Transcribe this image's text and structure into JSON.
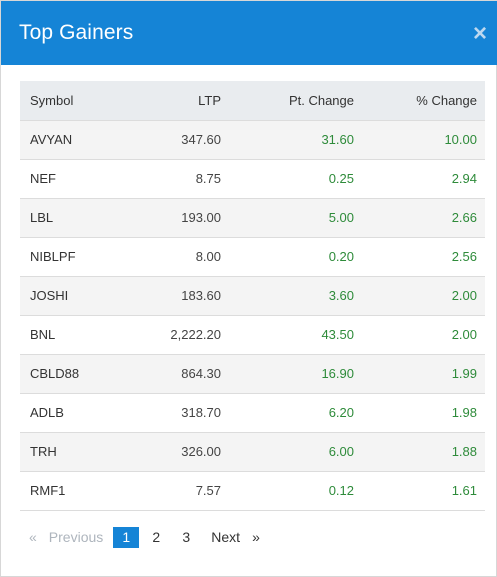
{
  "modal": {
    "title": "Top Gainers",
    "close_glyph": "×",
    "close_icon": "close-icon"
  },
  "table": {
    "headers": {
      "symbol": "Symbol",
      "ltp": "LTP",
      "pt_change": "Pt. Change",
      "pct_change": "% Change"
    },
    "rows": [
      {
        "symbol": "AVYAN",
        "ltp": "347.60",
        "pt_change": "31.60",
        "pct_change": "10.00"
      },
      {
        "symbol": "NEF",
        "ltp": "8.75",
        "pt_change": "0.25",
        "pct_change": "2.94"
      },
      {
        "symbol": "LBL",
        "ltp": "193.00",
        "pt_change": "5.00",
        "pct_change": "2.66"
      },
      {
        "symbol": "NIBLPF",
        "ltp": "8.00",
        "pt_change": "0.20",
        "pct_change": "2.56"
      },
      {
        "symbol": "JOSHI",
        "ltp": "183.60",
        "pt_change": "3.60",
        "pct_change": "2.00"
      },
      {
        "symbol": "BNL",
        "ltp": "2,222.20",
        "pt_change": "43.50",
        "pct_change": "2.00"
      },
      {
        "symbol": "CBLD88",
        "ltp": "864.30",
        "pt_change": "16.90",
        "pct_change": "1.99"
      },
      {
        "symbol": "ADLB",
        "ltp": "318.70",
        "pt_change": "6.20",
        "pct_change": "1.98"
      },
      {
        "symbol": "TRH",
        "ltp": "326.00",
        "pt_change": "6.00",
        "pct_change": "1.88"
      },
      {
        "symbol": "RMF1",
        "ltp": "7.57",
        "pt_change": "0.12",
        "pct_change": "1.61"
      }
    ]
  },
  "pagination": {
    "prev_arrow": "«",
    "prev_label": "Previous",
    "pages": [
      "1",
      "2",
      "3"
    ],
    "active_page": "1",
    "next_label": "Next",
    "next_arrow": "»"
  },
  "colors": {
    "header_bg": "#1584d6",
    "positive": "#2e8b3a",
    "table_head_bg": "#e9ecef"
  }
}
